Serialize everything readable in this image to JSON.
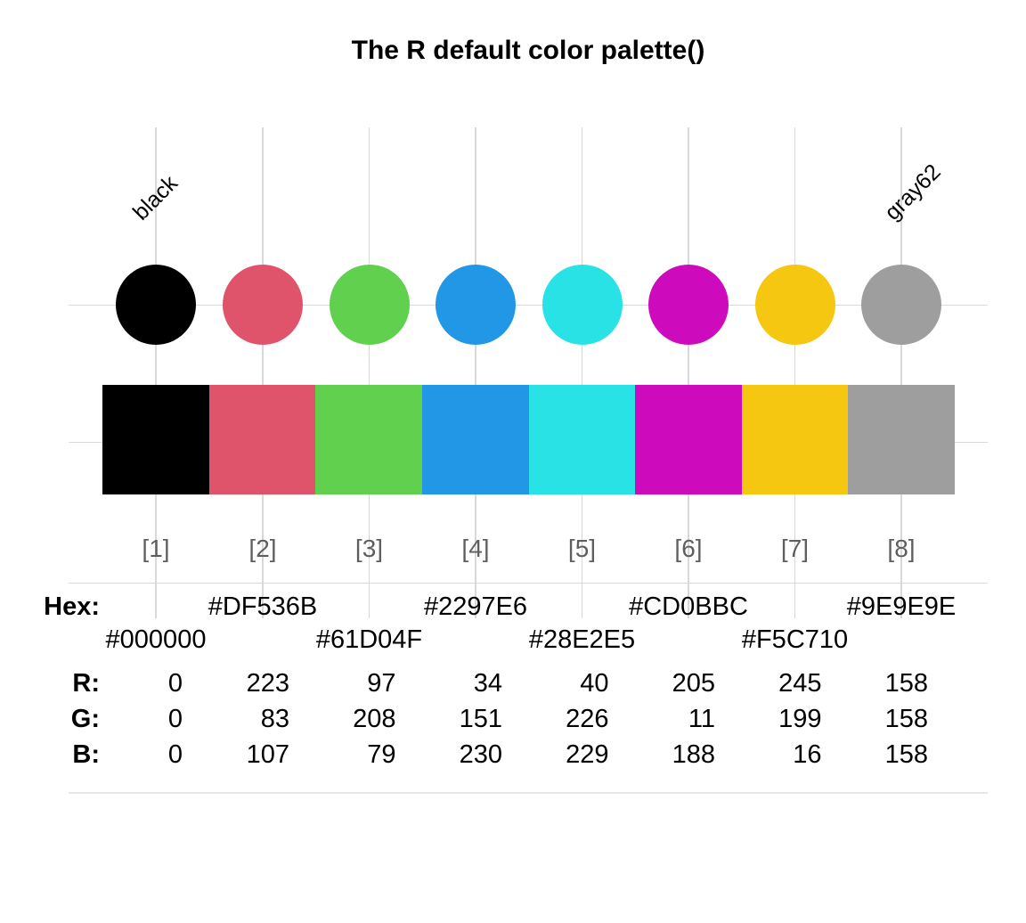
{
  "title": "The R default color palette()",
  "row_labels": {
    "hex": "Hex:",
    "r": "R:",
    "g": "G:",
    "b": "B:"
  },
  "palette": {
    "colors": [
      {
        "index_label": "[1]",
        "name": "black",
        "hex": "#000000",
        "r": 0,
        "g": 0,
        "b": 0
      },
      {
        "index_label": "[2]",
        "hex": "#DF536B",
        "r": 223,
        "g": 83,
        "b": 107
      },
      {
        "index_label": "[3]",
        "hex": "#61D04F",
        "r": 97,
        "g": 208,
        "b": 79
      },
      {
        "index_label": "[4]",
        "hex": "#2297E6",
        "r": 34,
        "g": 151,
        "b": 230
      },
      {
        "index_label": "[5]",
        "hex": "#28E2E5",
        "r": 40,
        "g": 226,
        "b": 229
      },
      {
        "index_label": "[6]",
        "hex": "#CD0BBC",
        "r": 205,
        "g": 11,
        "b": 188
      },
      {
        "index_label": "[7]",
        "hex": "#F5C710",
        "r": 245,
        "g": 199,
        "b": 16
      },
      {
        "index_label": "[8]",
        "name": "gray62",
        "hex": "#9E9E9E",
        "r": 158,
        "g": 158,
        "b": 158
      }
    ]
  },
  "style": {
    "grid_color": "#D9D9D9",
    "index_label_color": "#5F5F5F",
    "bottom_rule_color": "#E7E7E7",
    "text_color": "#000000",
    "background": "#FFFFFF"
  },
  "chart_data": {
    "type": "table",
    "title": "The R default color palette()",
    "categories": [
      "[1]",
      "[2]",
      "[3]",
      "[4]",
      "[5]",
      "[6]",
      "[7]",
      "[8]"
    ],
    "named_colors": {
      "1": "black",
      "8": "gray62"
    },
    "hex": [
      "#000000",
      "#DF536B",
      "#61D04F",
      "#2297E6",
      "#28E2E5",
      "#CD0BBC",
      "#F5C710",
      "#9E9E9E"
    ],
    "series": [
      {
        "name": "R",
        "values": [
          0,
          223,
          97,
          34,
          40,
          205,
          245,
          158
        ]
      },
      {
        "name": "G",
        "values": [
          0,
          83,
          208,
          151,
          226,
          11,
          199,
          158
        ]
      },
      {
        "name": "B",
        "values": [
          0,
          107,
          79,
          230,
          229,
          188,
          16,
          158
        ]
      }
    ],
    "marks": [
      "circle swatch per color",
      "bar swatch per color"
    ],
    "grid": true,
    "legend": "none"
  }
}
